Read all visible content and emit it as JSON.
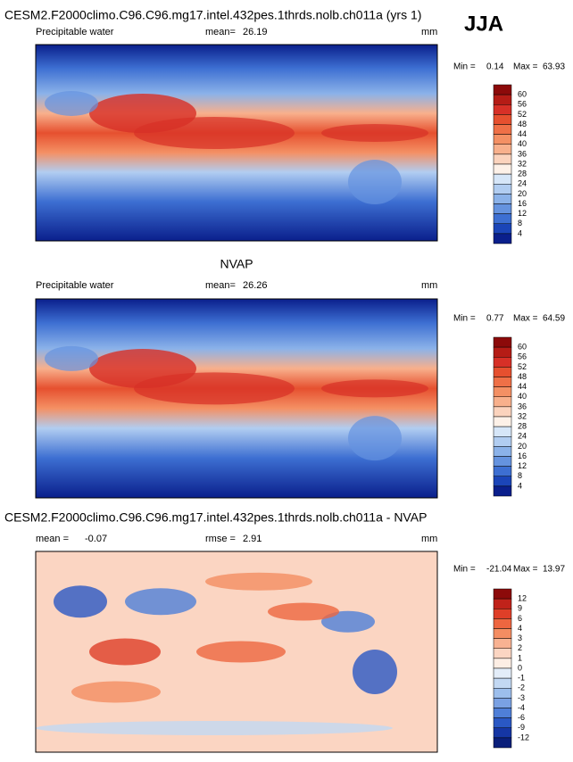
{
  "season": "JJA",
  "panels": [
    {
      "title": "CESM2.F2000climo.C96.C96.mg17.intel.432pes.1thrds.nolb.ch011a (yrs 1)",
      "left_label": "Precipitable water",
      "mean_label": "mean=",
      "mean": 26.19,
      "units": "mm",
      "min_label": "Min =",
      "min": 0.14,
      "max_label": "Max =",
      "max": 63.93,
      "colorbar": {
        "levels": [
          60,
          56,
          52,
          48,
          44,
          40,
          36,
          32,
          28,
          24,
          20,
          16,
          12,
          8,
          4
        ],
        "colors": [
          "#8c0a0a",
          "#b51c16",
          "#d73027",
          "#e6502f",
          "#ef7047",
          "#f49064",
          "#f8b08c",
          "#fbd3bd",
          "#fdf1e8",
          "#d6e6f8",
          "#b1cdf1",
          "#8bb2e9",
          "#6593df",
          "#3d6fd2",
          "#1b45b8",
          "#0a1f8c"
        ]
      }
    },
    {
      "title": "NVAP",
      "left_label": "Precipitable water",
      "mean_label": "mean=",
      "mean": 26.26,
      "units": "mm",
      "min_label": "Min =",
      "min": 0.77,
      "max_label": "Max =",
      "max": 64.59,
      "colorbar": {
        "levels": [
          60,
          56,
          52,
          48,
          44,
          40,
          36,
          32,
          28,
          24,
          20,
          16,
          12,
          8,
          4
        ],
        "colors": [
          "#8c0a0a",
          "#b51c16",
          "#d73027",
          "#e6502f",
          "#ef7047",
          "#f49064",
          "#f8b08c",
          "#fbd3bd",
          "#fdf1e8",
          "#d6e6f8",
          "#b1cdf1",
          "#8bb2e9",
          "#6593df",
          "#3d6fd2",
          "#1b45b8",
          "#0a1f8c"
        ]
      }
    },
    {
      "title": "CESM2.F2000climo.C96.C96.mg17.intel.432pes.1thrds.nolb.ch011a - NVAP",
      "left_label": "mean =",
      "mean_label": "rmse =",
      "left_value": -0.07,
      "mean": 2.91,
      "units": "mm",
      "min_label": "Min =",
      "min": -21.04,
      "max_label": "Max =",
      "max": 13.97,
      "colorbar": {
        "levels": [
          12,
          9,
          6,
          4,
          3,
          2,
          1,
          0,
          -1,
          -2,
          -3,
          -4,
          -6,
          -9,
          -12
        ],
        "colors": [
          "#8c0a0a",
          "#c0221a",
          "#df3f28",
          "#ee6640",
          "#f48d62",
          "#f8b292",
          "#fbd5c2",
          "#fdeee4",
          "#e3edf9",
          "#c2d8f3",
          "#9cbeec",
          "#7aa1e3",
          "#4f7fd8",
          "#2a58c4",
          "#1536a4",
          "#0a1f7a"
        ]
      }
    }
  ]
}
